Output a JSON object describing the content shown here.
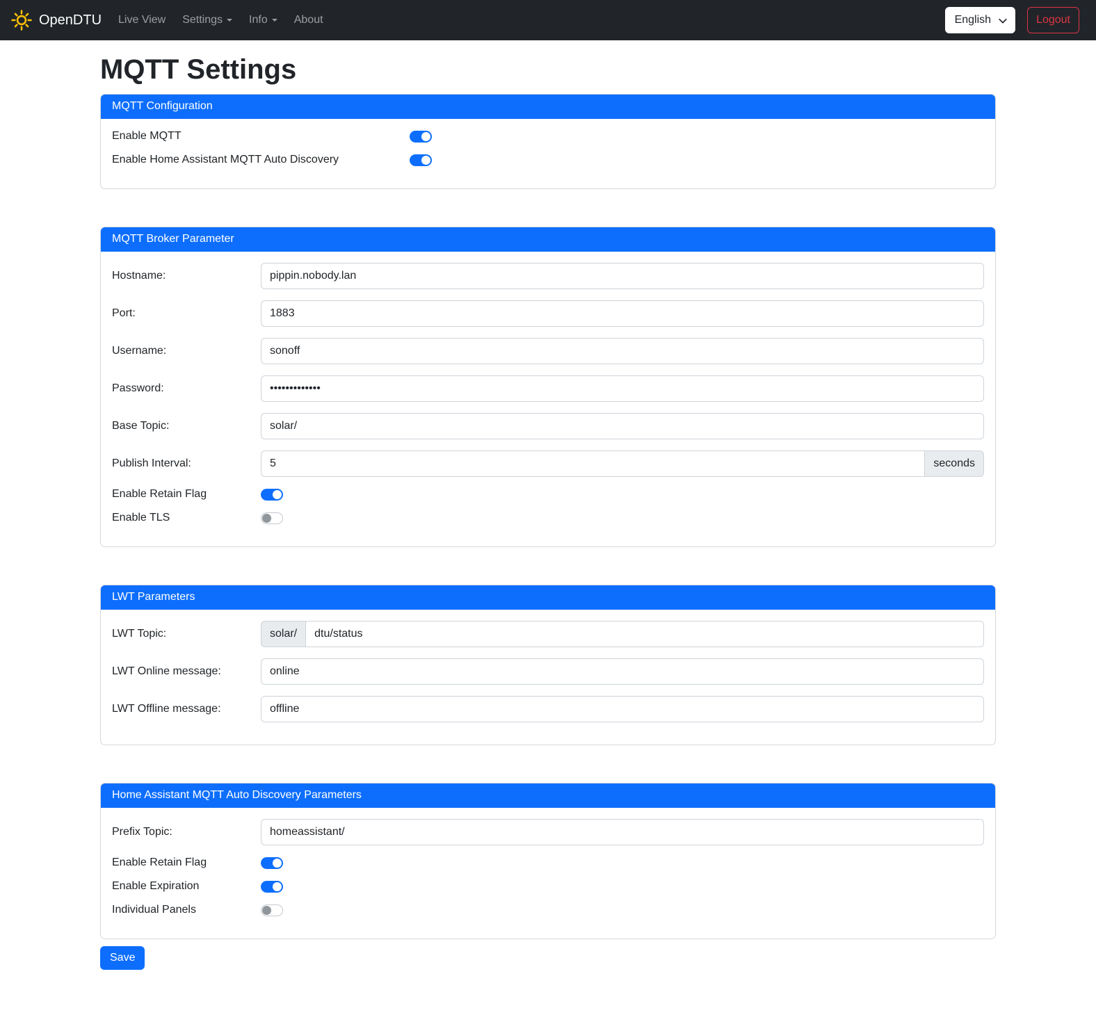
{
  "navbar": {
    "brand": "OpenDTU",
    "items": [
      {
        "label": "Live View",
        "dropdown": false
      },
      {
        "label": "Settings",
        "dropdown": true
      },
      {
        "label": "Info",
        "dropdown": true
      },
      {
        "label": "About",
        "dropdown": false
      }
    ],
    "language": "English",
    "logout_label": "Logout"
  },
  "page": {
    "title": "MQTT Settings"
  },
  "cards": [
    {
      "title": "MQTT Configuration",
      "rows": [
        {
          "kind": "switch",
          "label": "Enable MQTT",
          "on": true
        },
        {
          "kind": "switch",
          "label": "Enable Home Assistant MQTT Auto Discovery",
          "on": true
        }
      ]
    },
    {
      "title": "MQTT Broker Parameter",
      "rows": [
        {
          "kind": "input",
          "label": "Hostname:",
          "value": "pippin.nobody.lan"
        },
        {
          "kind": "input",
          "label": "Port:",
          "value": "1883"
        },
        {
          "kind": "input",
          "label": "Username:",
          "value": "sonoff"
        },
        {
          "kind": "input",
          "label": "Password:",
          "value": "•••••••••••••"
        },
        {
          "kind": "input",
          "label": "Base Topic:",
          "value": "solar/"
        },
        {
          "kind": "input",
          "label": "Publish Interval:",
          "value": "5",
          "suffix": "seconds"
        },
        {
          "kind": "switch",
          "label": "Enable Retain Flag",
          "on": true
        },
        {
          "kind": "switch",
          "label": "Enable TLS",
          "on": false
        }
      ]
    },
    {
      "title": "LWT Parameters",
      "rows": [
        {
          "kind": "input",
          "label": "LWT Topic:",
          "prefix": "solar/",
          "value": "dtu/status"
        },
        {
          "kind": "input",
          "label": "LWT Online message:",
          "value": "online"
        },
        {
          "kind": "input",
          "label": "LWT Offline message:",
          "value": "offline"
        }
      ]
    },
    {
      "title": "Home Assistant MQTT Auto Discovery Parameters",
      "rows": [
        {
          "kind": "input",
          "label": "Prefix Topic:",
          "value": "homeassistant/"
        },
        {
          "kind": "switch",
          "label": "Enable Retain Flag",
          "on": true
        },
        {
          "kind": "switch",
          "label": "Enable Expiration",
          "on": true
        },
        {
          "kind": "switch",
          "label": "Individual Panels",
          "on": false
        }
      ]
    }
  ],
  "save_label": "Save",
  "colors": {
    "accent": "#0d6efd",
    "navbar_bg": "#212529",
    "danger": "#dc3545",
    "sun": "#ffc107"
  }
}
